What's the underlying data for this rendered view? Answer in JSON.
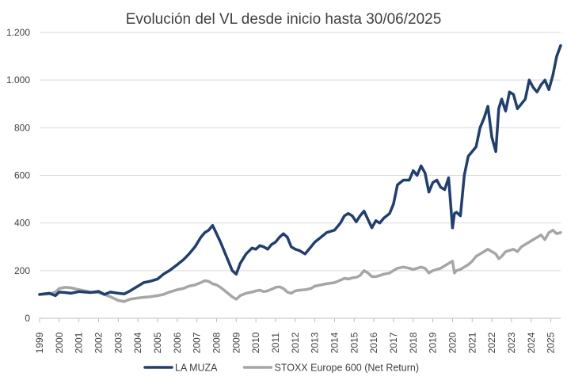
{
  "chart_data": {
    "type": "line",
    "title": "Evolución del VL desde inicio hasta 30/06/2025",
    "xlabel": "",
    "ylabel": "",
    "ylim": [
      0,
      1200
    ],
    "xlim": [
      1999,
      2025.5
    ],
    "yticks": [
      0,
      200,
      400,
      600,
      800,
      1000,
      1200
    ],
    "ytick_labels": [
      "0",
      "200",
      "400",
      "600",
      "800",
      "1.000",
      "1.200"
    ],
    "xticks": [
      "1999",
      "2000",
      "2001",
      "2002",
      "2003",
      "2004",
      "2005",
      "2006",
      "2007",
      "2008",
      "2009",
      "2010",
      "2011",
      "2012",
      "2013",
      "2014",
      "2015",
      "2016",
      "2017",
      "2018",
      "2019",
      "2020",
      "2021",
      "2022",
      "2023",
      "2024",
      "2025"
    ],
    "grid": "horizontal",
    "legend_position": "bottom",
    "series": [
      {
        "name": "LA MUZA",
        "color": "#1F3F72",
        "x": [
          1999.0,
          1999.5,
          1999.8,
          2000.0,
          2000.3,
          2000.6,
          2001.0,
          2001.3,
          2001.6,
          2002.0,
          2002.3,
          2002.6,
          2003.0,
          2003.3,
          2003.6,
          2004.0,
          2004.3,
          2004.6,
          2005.0,
          2005.3,
          2005.6,
          2006.0,
          2006.3,
          2006.6,
          2006.9,
          2007.2,
          2007.4,
          2007.6,
          2007.8,
          2008.0,
          2008.2,
          2008.5,
          2008.8,
          2009.0,
          2009.2,
          2009.5,
          2009.8,
          2010.0,
          2010.2,
          2010.4,
          2010.6,
          2010.8,
          2011.0,
          2011.2,
          2011.4,
          2011.6,
          2011.8,
          2012.0,
          2012.2,
          2012.5,
          2012.8,
          2013.0,
          2013.3,
          2013.6,
          2014.0,
          2014.3,
          2014.5,
          2014.7,
          2014.9,
          2015.1,
          2015.3,
          2015.5,
          2015.7,
          2015.9,
          2016.1,
          2016.3,
          2016.5,
          2016.8,
          2017.0,
          2017.2,
          2017.5,
          2017.8,
          2018.0,
          2018.2,
          2018.4,
          2018.6,
          2018.8,
          2019.0,
          2019.2,
          2019.4,
          2019.6,
          2019.8,
          2020.0,
          2020.1,
          2020.2,
          2020.4,
          2020.6,
          2020.8,
          2021.0,
          2021.2,
          2021.4,
          2021.6,
          2021.8,
          2022.0,
          2022.2,
          2022.35,
          2022.5,
          2022.7,
          2022.9,
          2023.1,
          2023.3,
          2023.5,
          2023.7,
          2023.9,
          2024.1,
          2024.3,
          2024.5,
          2024.7,
          2024.9,
          2025.1,
          2025.3,
          2025.5
        ],
        "y": [
          100,
          105,
          95,
          110,
          108,
          105,
          112,
          110,
          108,
          113,
          100,
          110,
          105,
          102,
          115,
          135,
          150,
          155,
          165,
          185,
          200,
          225,
          245,
          270,
          300,
          340,
          360,
          370,
          390,
          355,
          320,
          260,
          200,
          185,
          230,
          270,
          295,
          290,
          305,
          300,
          290,
          310,
          320,
          340,
          355,
          340,
          300,
          290,
          285,
          270,
          300,
          320,
          340,
          360,
          370,
          400,
          430,
          440,
          430,
          405,
          430,
          450,
          415,
          380,
          410,
          400,
          420,
          440,
          480,
          560,
          580,
          580,
          620,
          600,
          640,
          610,
          530,
          570,
          580,
          550,
          540,
          590,
          380,
          440,
          445,
          430,
          600,
          680,
          700,
          720,
          800,
          840,
          890,
          760,
          700,
          880,
          920,
          870,
          950,
          940,
          880,
          900,
          920,
          1000,
          970,
          950,
          980,
          1000,
          960,
          1020,
          1100,
          1145
        ]
      },
      {
        "name": "STOXX Europe 600 (Net Return)",
        "color": "#A6A6A6",
        "x": [
          1999.0,
          1999.5,
          1999.8,
          2000.0,
          2000.3,
          2000.6,
          2001.0,
          2001.3,
          2001.6,
          2002.0,
          2002.3,
          2002.6,
          2003.0,
          2003.3,
          2003.6,
          2004.0,
          2004.3,
          2004.6,
          2005.0,
          2005.3,
          2005.6,
          2006.0,
          2006.3,
          2006.6,
          2006.9,
          2007.2,
          2007.4,
          2007.6,
          2007.8,
          2008.0,
          2008.2,
          2008.5,
          2008.8,
          2009.0,
          2009.2,
          2009.5,
          2009.8,
          2010.0,
          2010.2,
          2010.4,
          2010.6,
          2010.8,
          2011.0,
          2011.2,
          2011.4,
          2011.6,
          2011.8,
          2012.0,
          2012.2,
          2012.5,
          2012.8,
          2013.0,
          2013.3,
          2013.6,
          2014.0,
          2014.3,
          2014.5,
          2014.7,
          2014.9,
          2015.1,
          2015.3,
          2015.5,
          2015.7,
          2015.9,
          2016.1,
          2016.3,
          2016.5,
          2016.8,
          2017.0,
          2017.2,
          2017.5,
          2017.8,
          2018.0,
          2018.2,
          2018.4,
          2018.6,
          2018.8,
          2019.0,
          2019.2,
          2019.4,
          2019.6,
          2019.8,
          2020.0,
          2020.1,
          2020.2,
          2020.4,
          2020.6,
          2020.8,
          2021.0,
          2021.2,
          2021.4,
          2021.6,
          2021.8,
          2022.0,
          2022.2,
          2022.35,
          2022.5,
          2022.7,
          2022.9,
          2023.1,
          2023.3,
          2023.5,
          2023.7,
          2023.9,
          2024.1,
          2024.3,
          2024.5,
          2024.7,
          2024.9,
          2025.1,
          2025.3,
          2025.5
        ],
        "y": [
          100,
          102,
          110,
          125,
          130,
          128,
          120,
          115,
          110,
          108,
          100,
          90,
          75,
          70,
          80,
          85,
          88,
          90,
          95,
          100,
          110,
          120,
          125,
          135,
          140,
          150,
          158,
          155,
          145,
          140,
          130,
          110,
          90,
          80,
          95,
          105,
          110,
          115,
          118,
          112,
          115,
          122,
          130,
          132,
          125,
          110,
          105,
          115,
          118,
          120,
          125,
          135,
          140,
          145,
          150,
          160,
          168,
          165,
          170,
          172,
          180,
          200,
          190,
          175,
          175,
          180,
          185,
          190,
          200,
          210,
          215,
          210,
          205,
          210,
          215,
          210,
          190,
          200,
          205,
          210,
          220,
          230,
          240,
          190,
          200,
          205,
          215,
          225,
          240,
          260,
          270,
          280,
          290,
          280,
          270,
          250,
          260,
          280,
          285,
          290,
          280,
          300,
          310,
          320,
          330,
          340,
          350,
          330,
          360,
          370,
          355,
          360
        ]
      }
    ]
  }
}
